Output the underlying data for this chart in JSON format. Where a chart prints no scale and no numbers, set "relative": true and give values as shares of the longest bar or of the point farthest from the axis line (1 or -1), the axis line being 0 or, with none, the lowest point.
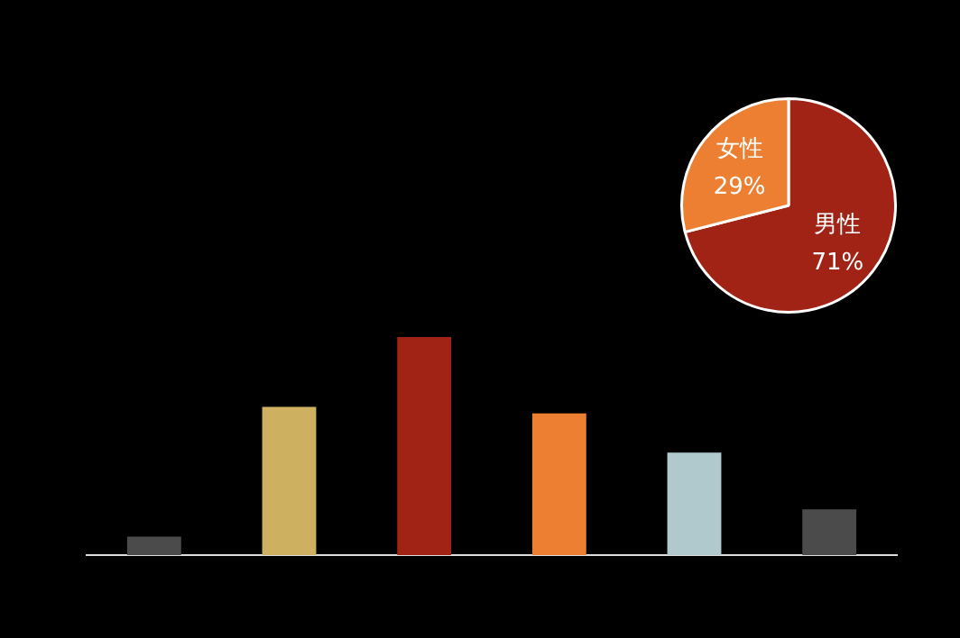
{
  "chart_data": [
    {
      "type": "bar",
      "relative": true,
      "categories": [
        null,
        null,
        null,
        null,
        null,
        null
      ],
      "colors": [
        "#4b4b4b",
        "#cdb060",
        "#a02315",
        "#ec7f32",
        "#b0c9cc",
        "#4b4b4b"
      ],
      "values": [
        0.085,
        0.68,
        1,
        0.65,
        0.47,
        0.21
      ]
    },
    {
      "type": "pie",
      "categories": [
        "男性",
        "女性"
      ],
      "values": [
        71,
        29
      ],
      "value_labels": [
        "71%",
        "29%"
      ],
      "colors": [
        "#a02315",
        "#ec7f32"
      ]
    }
  ]
}
